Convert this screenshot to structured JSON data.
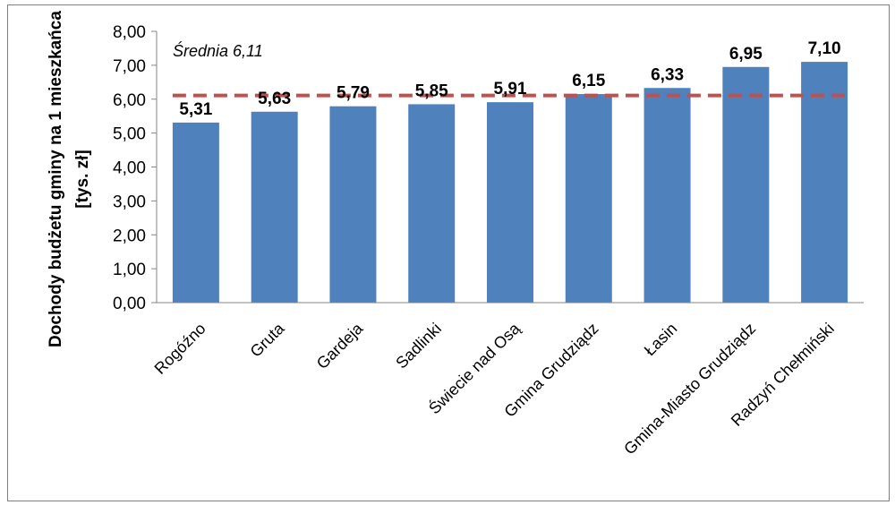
{
  "chart_data": {
    "type": "bar",
    "title": "",
    "xlabel": "",
    "ylabel_line1": "Dochody budżetu gminy na 1 mieszkańca",
    "ylabel_line2": "[tys. zł]",
    "categories": [
      "Rogóźno",
      "Gruta",
      "Gardeja",
      "Sadlinki",
      "Świecie nad Osą",
      "Gmina Grudziądz",
      "Łasin",
      "Gmina-Miasto Grudziądz",
      "Radzyń Chełmiński"
    ],
    "values": [
      5.31,
      5.63,
      5.79,
      5.85,
      5.91,
      6.15,
      6.33,
      6.95,
      7.1
    ],
    "data_labels": [
      "5,31",
      "5,63",
      "5,79",
      "5,85",
      "5,91",
      "6,15",
      "6,33",
      "6,95",
      "7,10"
    ],
    "ylim": [
      0,
      8
    ],
    "yticks": [
      0,
      1,
      2,
      3,
      4,
      5,
      6,
      7,
      8
    ],
    "ytick_labels": [
      "0,00",
      "1,00",
      "2,00",
      "3,00",
      "4,00",
      "5,00",
      "6,00",
      "7,00",
      "8,00"
    ],
    "average": {
      "value": 6.11,
      "label": "Średnia 6,11",
      "style": "dashed"
    },
    "grid": false,
    "legend": "none",
    "colors": {
      "bar": "#4f81bd",
      "average_line": "#c0504d",
      "axis": "#868686"
    }
  }
}
